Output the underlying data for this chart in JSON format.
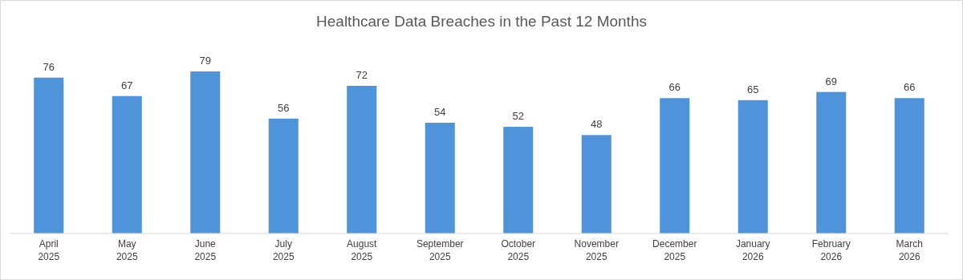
{
  "chart_data": {
    "type": "bar",
    "title": "Healthcare Data Breaches in the Past 12 Months",
    "categories": [
      "April 2025",
      "May 2025",
      "June 2025",
      "July 2025",
      "August 2025",
      "September 2025",
      "October 2025",
      "November 2025",
      "December 2025",
      "January 2026",
      "February 2026",
      "March 2026"
    ],
    "values": [
      76,
      67,
      79,
      56,
      72,
      54,
      52,
      48,
      66,
      65,
      69,
      66
    ],
    "color": "#4f94da",
    "data_labels": true
  }
}
